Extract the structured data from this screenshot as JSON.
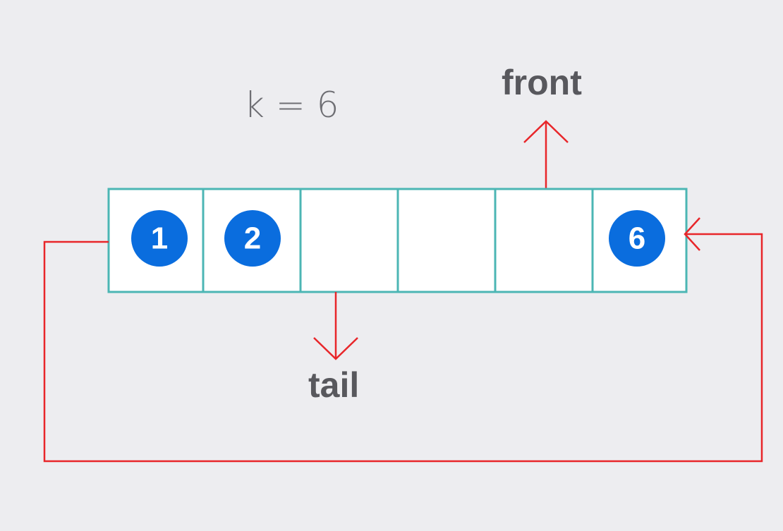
{
  "capacity_label": "k = 6",
  "front_label": "front",
  "tail_label": "tail",
  "slots": [
    {
      "index": 0,
      "value": "1"
    },
    {
      "index": 1,
      "value": "2"
    },
    {
      "index": 2,
      "value": ""
    },
    {
      "index": 3,
      "value": ""
    },
    {
      "index": 4,
      "value": ""
    },
    {
      "index": 5,
      "value": "6"
    }
  ],
  "colors": {
    "background": "#ededf0",
    "cell_border": "#4cb6b4",
    "badge": "#0a6dde",
    "arrow": "#e8262a"
  }
}
